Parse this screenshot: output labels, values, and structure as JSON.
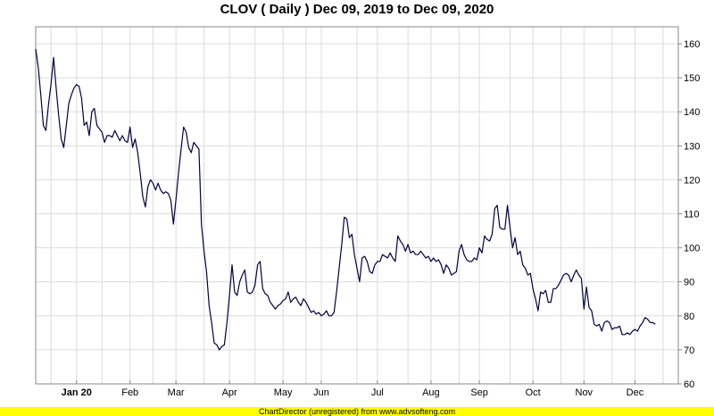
{
  "chart_data": {
    "type": "line",
    "title": "CLOV ( Daily ) Dec 09, 2019 to Dec 09, 2020",
    "xlabel": "",
    "ylabel": "",
    "ylim": [
      60,
      165
    ],
    "yticks": [
      60,
      70,
      80,
      90,
      100,
      110,
      120,
      130,
      140,
      150,
      160
    ],
    "y_axis_side": "right",
    "grid": true,
    "line_color": "#000040",
    "x_range": [
      0,
      252
    ],
    "xtick_labels": [
      {
        "label": "Jan 20",
        "x": 16,
        "bold": true
      },
      {
        "label": "Feb",
        "x": 37
      },
      {
        "label": "Mar",
        "x": 55
      },
      {
        "label": "Apr",
        "x": 76
      },
      {
        "label": "May",
        "x": 97
      },
      {
        "label": "Jun",
        "x": 112
      },
      {
        "label": "Jul",
        "x": 134
      },
      {
        "label": "Aug",
        "x": 155
      },
      {
        "label": "Sep",
        "x": 174
      },
      {
        "label": "Oct",
        "x": 195
      },
      {
        "label": "Nov",
        "x": 215
      },
      {
        "label": "Dec",
        "x": 235
      }
    ],
    "x_minor_gridlines": [
      6,
      26,
      46,
      66,
      86,
      106,
      126,
      146,
      166,
      186,
      206,
      226,
      246
    ],
    "series": [
      {
        "values": [
          [
            0,
            158.5
          ],
          [
            1,
            153
          ],
          [
            2,
            145
          ],
          [
            3,
            136
          ],
          [
            4,
            134.5
          ],
          [
            5,
            142
          ],
          [
            6,
            148
          ],
          [
            7,
            156
          ],
          [
            8,
            147
          ],
          [
            9,
            139
          ],
          [
            10,
            132
          ],
          [
            11,
            129.5
          ],
          [
            12,
            136
          ],
          [
            13,
            142.5
          ],
          [
            14,
            145
          ],
          [
            15,
            147
          ],
          [
            16,
            148
          ],
          [
            17,
            147.5
          ],
          [
            18,
            144
          ],
          [
            19,
            136
          ],
          [
            20,
            137
          ],
          [
            21,
            133
          ],
          [
            22,
            140
          ],
          [
            23,
            141
          ],
          [
            24,
            136
          ],
          [
            25,
            135
          ],
          [
            26,
            134
          ],
          [
            27,
            131
          ],
          [
            28,
            133
          ],
          [
            29,
            133
          ],
          [
            30,
            132.5
          ],
          [
            31,
            134.5
          ],
          [
            32,
            133
          ],
          [
            33,
            131.5
          ],
          [
            34,
            133
          ],
          [
            35,
            131.5
          ],
          [
            36,
            131
          ],
          [
            37,
            135.5
          ],
          [
            38,
            129.5
          ],
          [
            39,
            132
          ],
          [
            40,
            128
          ],
          [
            41,
            122
          ],
          [
            42,
            115
          ],
          [
            43,
            112
          ],
          [
            44,
            118
          ],
          [
            45,
            120
          ],
          [
            46,
            119
          ],
          [
            47,
            117
          ],
          [
            48,
            119
          ],
          [
            49,
            117
          ],
          [
            50,
            116
          ],
          [
            51,
            116.5
          ],
          [
            52,
            116
          ],
          [
            53,
            114
          ],
          [
            54,
            107
          ],
          [
            55,
            114
          ],
          [
            56,
            122
          ],
          [
            57,
            129
          ],
          [
            58,
            135.5
          ],
          [
            59,
            134
          ],
          [
            60,
            129.5
          ],
          [
            61,
            128
          ],
          [
            62,
            131
          ],
          [
            63,
            130
          ],
          [
            64,
            129
          ],
          [
            65,
            107
          ],
          [
            66,
            99
          ],
          [
            67,
            93
          ],
          [
            68,
            83
          ],
          [
            69,
            78
          ],
          [
            70,
            72
          ],
          [
            71,
            71.5
          ],
          [
            72,
            70
          ],
          [
            73,
            71
          ],
          [
            74,
            71.5
          ],
          [
            75,
            78
          ],
          [
            76,
            86
          ],
          [
            77,
            95
          ],
          [
            78,
            87
          ],
          [
            79,
            86
          ],
          [
            80,
            90
          ],
          [
            81,
            92
          ],
          [
            82,
            93.5
          ],
          [
            83,
            87
          ],
          [
            84,
            86.5
          ],
          [
            85,
            87
          ],
          [
            86,
            89
          ],
          [
            87,
            95
          ],
          [
            88,
            96
          ],
          [
            89,
            88
          ],
          [
            90,
            86.5
          ],
          [
            91,
            86
          ],
          [
            92,
            84
          ],
          [
            93,
            83
          ],
          [
            94,
            82
          ],
          [
            95,
            83
          ],
          [
            96,
            83.5
          ],
          [
            97,
            84.5
          ],
          [
            98,
            85
          ],
          [
            99,
            87
          ],
          [
            100,
            84
          ],
          [
            101,
            85
          ],
          [
            102,
            85.5
          ],
          [
            103,
            84
          ],
          [
            104,
            83
          ],
          [
            105,
            85
          ],
          [
            106,
            84
          ],
          [
            107,
            82.5
          ],
          [
            108,
            81
          ],
          [
            109,
            81.5
          ],
          [
            110,
            80.5
          ],
          [
            111,
            81
          ],
          [
            112,
            80
          ],
          [
            113,
            80.5
          ],
          [
            114,
            81.5
          ],
          [
            115,
            80
          ],
          [
            116,
            80
          ],
          [
            117,
            81
          ],
          [
            118,
            87
          ],
          [
            119,
            94
          ],
          [
            120,
            101
          ],
          [
            121,
            109
          ],
          [
            122,
            108.5
          ],
          [
            123,
            103
          ],
          [
            124,
            104
          ],
          [
            125,
            98
          ],
          [
            126,
            94
          ],
          [
            127,
            90
          ],
          [
            128,
            97
          ],
          [
            129,
            97.5
          ],
          [
            130,
            96
          ],
          [
            131,
            93
          ],
          [
            132,
            92.5
          ],
          [
            133,
            95
          ],
          [
            134,
            96
          ],
          [
            135,
            96
          ],
          [
            136,
            98
          ],
          [
            137,
            97.5
          ],
          [
            138,
            97
          ],
          [
            139,
            98.5
          ],
          [
            140,
            97
          ],
          [
            141,
            96
          ],
          [
            142,
            103.5
          ],
          [
            143,
            102
          ],
          [
            144,
            101
          ],
          [
            145,
            99
          ],
          [
            146,
            101
          ],
          [
            147,
            98.5
          ],
          [
            148,
            99
          ],
          [
            149,
            98
          ],
          [
            150,
            98
          ],
          [
            151,
            99
          ],
          [
            152,
            98
          ],
          [
            153,
            97
          ],
          [
            154,
            97.5
          ],
          [
            155,
            96
          ],
          [
            156,
            97
          ],
          [
            157,
            96
          ],
          [
            158,
            96.5
          ],
          [
            159,
            95
          ],
          [
            160,
            92.5
          ],
          [
            161,
            95
          ],
          [
            162,
            94
          ],
          [
            163,
            92
          ],
          [
            164,
            92.5
          ],
          [
            165,
            93
          ],
          [
            166,
            99
          ],
          [
            167,
            101
          ],
          [
            168,
            98
          ],
          [
            169,
            96.5
          ],
          [
            170,
            96
          ],
          [
            171,
            96
          ],
          [
            172,
            97
          ],
          [
            173,
            96.5
          ],
          [
            174,
            100
          ],
          [
            175,
            98.5
          ],
          [
            176,
            103.5
          ],
          [
            177,
            102.5
          ],
          [
            178,
            102
          ],
          [
            179,
            104
          ],
          [
            180,
            111.5
          ],
          [
            181,
            112.5
          ],
          [
            182,
            106
          ],
          [
            183,
            105.5
          ],
          [
            184,
            105.5
          ],
          [
            185,
            112.5
          ],
          [
            186,
            106
          ],
          [
            187,
            100
          ],
          [
            188,
            103
          ],
          [
            189,
            98
          ],
          [
            190,
            99
          ],
          [
            191,
            95
          ],
          [
            192,
            94
          ],
          [
            193,
            92
          ],
          [
            194,
            92.5
          ],
          [
            195,
            88
          ],
          [
            196,
            85
          ],
          [
            197,
            81.5
          ],
          [
            198,
            87
          ],
          [
            199,
            86.5
          ],
          [
            200,
            87.5
          ],
          [
            201,
            84
          ],
          [
            202,
            84
          ],
          [
            203,
            88
          ],
          [
            204,
            88
          ],
          [
            205,
            89
          ],
          [
            206,
            90.5
          ],
          [
            207,
            92
          ],
          [
            208,
            92.5
          ],
          [
            209,
            92
          ],
          [
            210,
            90
          ],
          [
            211,
            92
          ],
          [
            212,
            93.5
          ],
          [
            213,
            92
          ],
          [
            214,
            91
          ],
          [
            215,
            82
          ],
          [
            216,
            88.5
          ],
          [
            217,
            82.5
          ],
          [
            218,
            81.5
          ],
          [
            219,
            77.5
          ],
          [
            220,
            77
          ],
          [
            221,
            77.5
          ],
          [
            222,
            75.5
          ],
          [
            223,
            78
          ],
          [
            224,
            78.5
          ],
          [
            225,
            78
          ],
          [
            226,
            76
          ],
          [
            227,
            76.5
          ],
          [
            228,
            76.5
          ],
          [
            229,
            77
          ],
          [
            230,
            74.5
          ],
          [
            231,
            74.5
          ],
          [
            232,
            75
          ],
          [
            233,
            74.5
          ],
          [
            234,
            75.5
          ],
          [
            235,
            76
          ],
          [
            236,
            75.5
          ],
          [
            237,
            77
          ],
          [
            238,
            78
          ],
          [
            239,
            79.5
          ],
          [
            240,
            79
          ],
          [
            241,
            78
          ],
          [
            242,
            78
          ],
          [
            243,
            77.5
          ]
        ]
      }
    ]
  },
  "footer": {
    "text": "ChartDirector (unregistered) from www.advsofteng.com"
  }
}
